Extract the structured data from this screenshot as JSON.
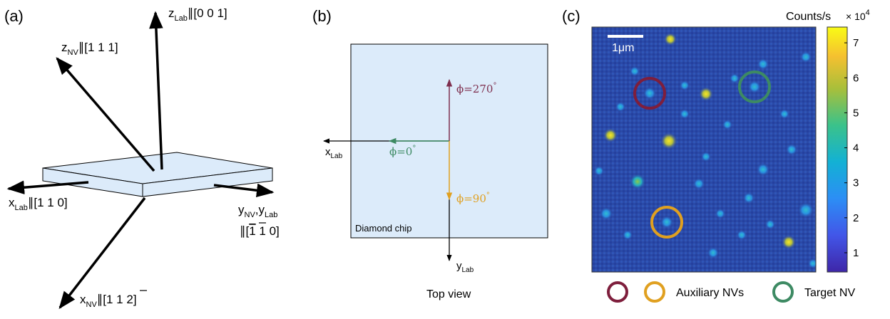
{
  "panel_a": {
    "label": "(a)",
    "z_lab": {
      "main": "z",
      "sub": "Lab",
      "tail": "∥[0 0 1]"
    },
    "z_nv": {
      "main": "z",
      "sub": "NV",
      "tail": "∥[1 1 1]"
    },
    "x_lab": {
      "main": "x",
      "sub": "Lab",
      "tail": "∥[1 1 0]"
    },
    "y_nv_y_lab": {
      "main1": "y",
      "sub1": "NV",
      "sep": ",y",
      "sub2": "Lab",
      "line2_pre": "∥[",
      "line2_bar": "1",
      "line2_post": " 1 0]"
    },
    "x_nv": {
      "main": "x",
      "sub": "NV",
      "tail_pre": "∥[1 1 ",
      "tail_bar": "2",
      "tail_post": "]"
    }
  },
  "panel_b": {
    "label": "(b)",
    "chip_label": "Diamond chip",
    "x_lab": {
      "main": "x",
      "sub": "Lab"
    },
    "y_lab": {
      "main": "y",
      "sub": "Lab"
    },
    "phi_270": "ϕ=270",
    "phi_0": "ϕ=0",
    "phi_90": "ϕ=90",
    "degree": "°",
    "caption": "Top view",
    "colors": {
      "phi_270": "#7e2f4e",
      "phi_0": "#3d8a63",
      "phi_90": "#e0a020",
      "chip_fill": "#dcebfa"
    }
  },
  "panel_c": {
    "label": "(c)",
    "colorbar_title": "Counts/s",
    "colorbar_exponent_base": "× 10",
    "colorbar_exponent": "4",
    "colorbar_ticks": [
      "1",
      "2",
      "3",
      "4",
      "5",
      "6",
      "7"
    ],
    "scalebar_label": "1μm",
    "legend": {
      "auxiliary": "Auxiliary NVs",
      "target": "Target NV"
    },
    "colors": {
      "purple": "#7e1e3c",
      "orange": "#e0a020",
      "green": "#3d8a63",
      "background": "#2a4aa8"
    }
  }
}
